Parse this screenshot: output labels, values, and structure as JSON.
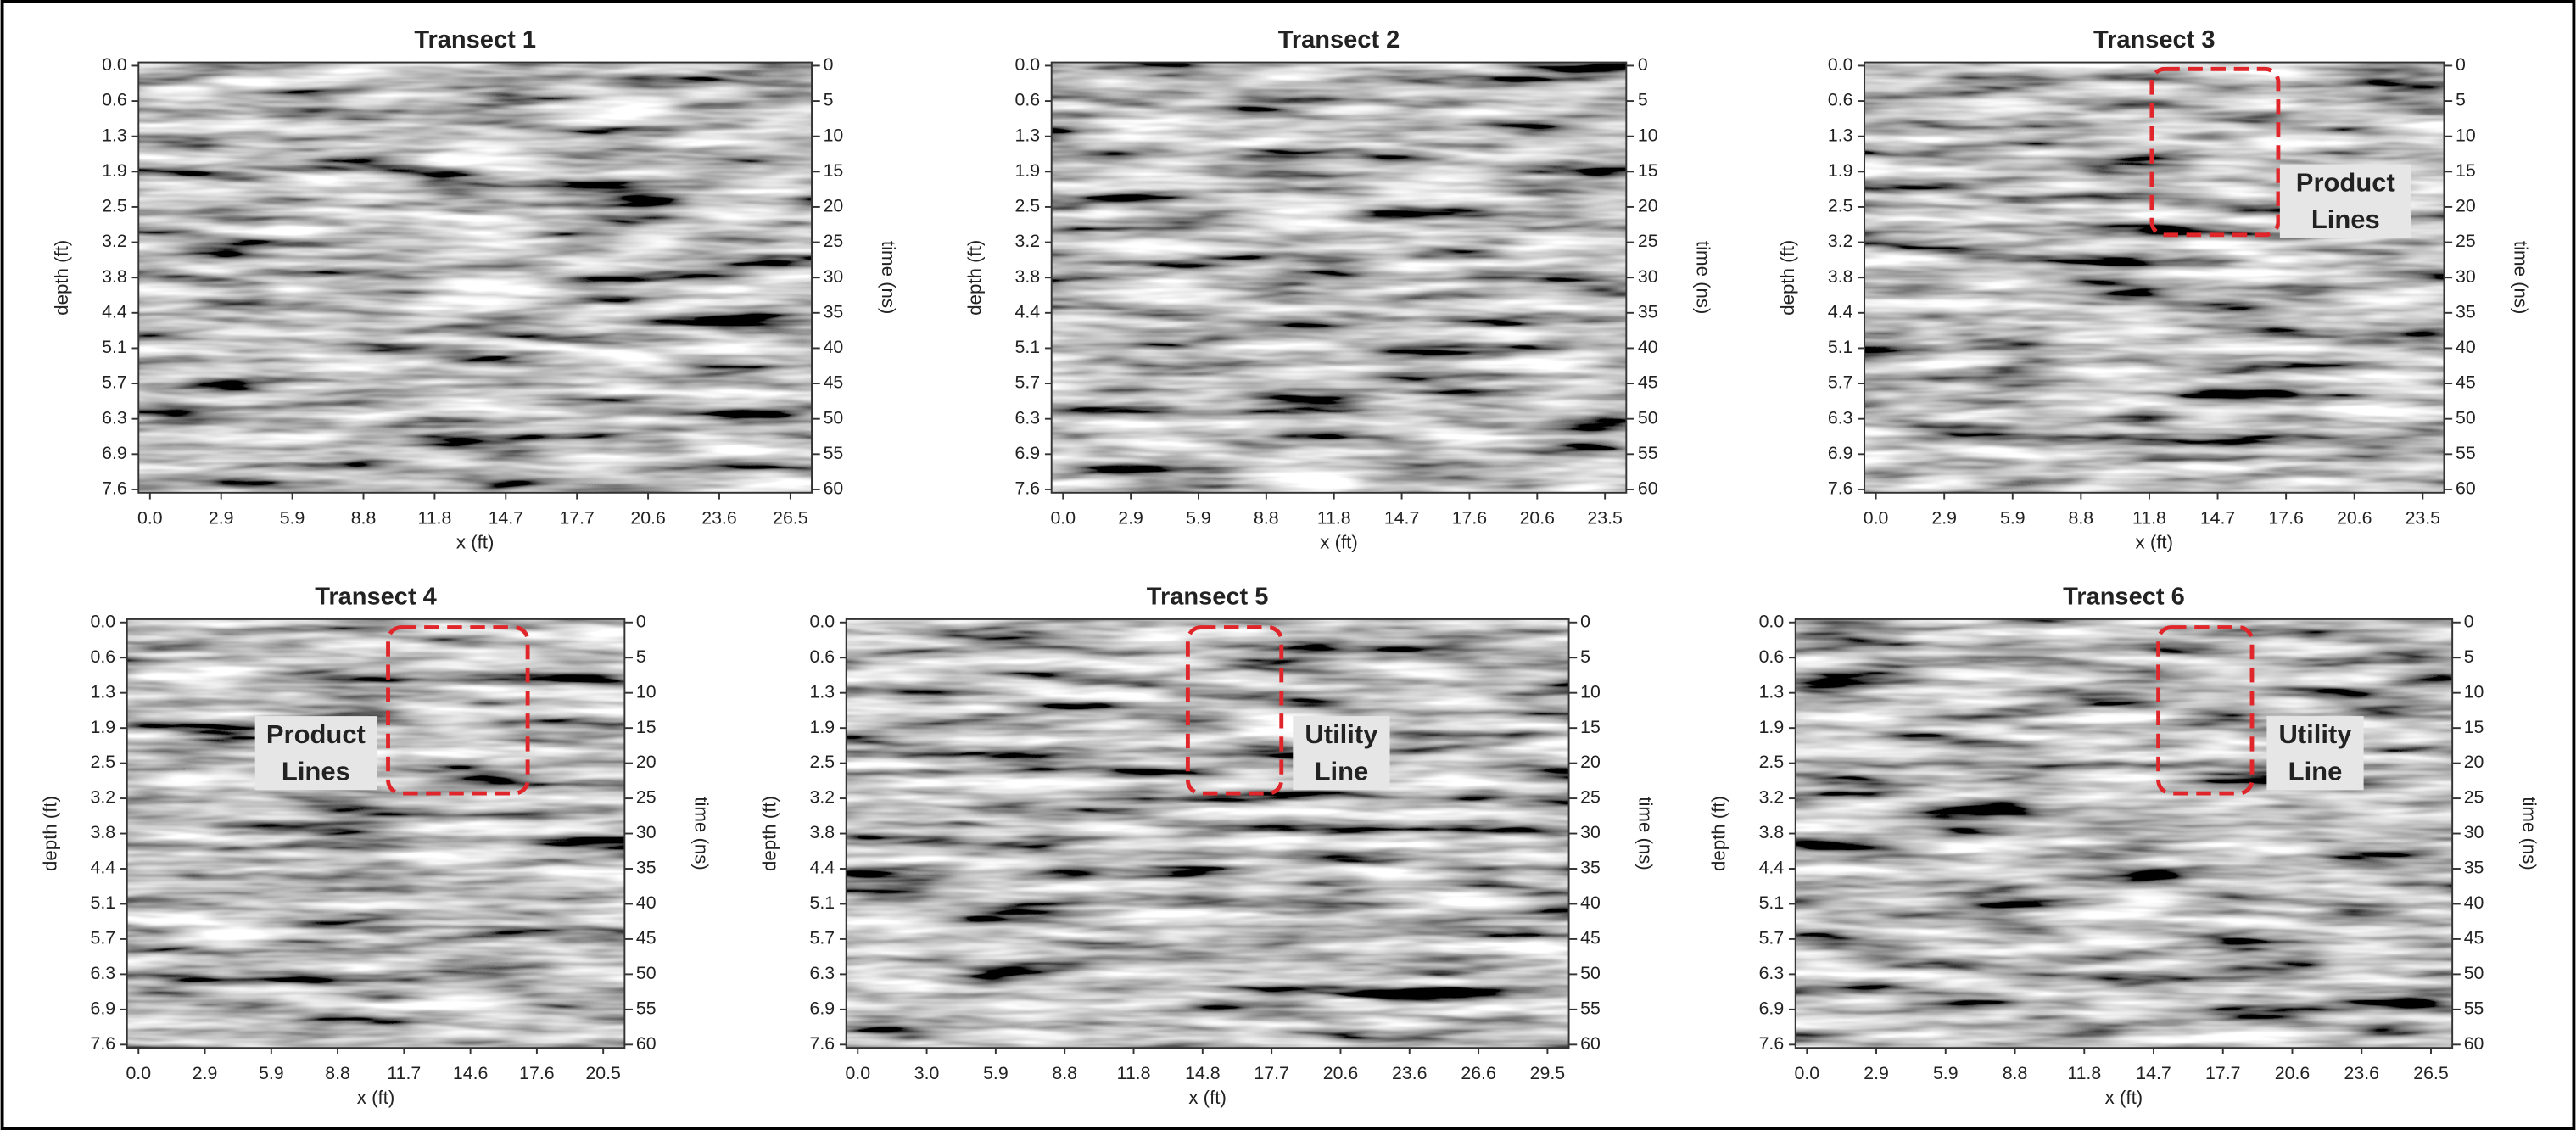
{
  "panels": [
    {
      "title": "Transect 1",
      "x_label": "x (ft)",
      "y_label": "depth (ft)",
      "y2_label": "time (ns)",
      "x_ticks": [
        "0.0",
        "2.9",
        "5.9",
        "8.8",
        "11.8",
        "14.7",
        "17.7",
        "20.6",
        "23.6",
        "26.5"
      ],
      "y_ticks": [
        "0.0",
        "0.6",
        "1.3",
        "1.9",
        "2.5",
        "3.2",
        "3.8",
        "4.4",
        "5.1",
        "5.7",
        "6.3",
        "6.9",
        "7.6"
      ],
      "y2_ticks": [
        "0",
        "5",
        "10",
        "15",
        "20",
        "25",
        "30",
        "35",
        "40",
        "45",
        "50",
        "55",
        "60"
      ]
    },
    {
      "title": "Transect 2",
      "x_label": "x (ft)",
      "y_label": "depth (ft)",
      "y2_label": "time (ns)",
      "x_ticks": [
        "0.0",
        "2.9",
        "5.9",
        "8.8",
        "11.8",
        "14.7",
        "17.6",
        "20.6",
        "23.5"
      ],
      "y_ticks": [
        "0.0",
        "0.6",
        "1.3",
        "1.9",
        "2.5",
        "3.2",
        "3.8",
        "4.4",
        "5.1",
        "5.7",
        "6.3",
        "6.9",
        "7.6"
      ],
      "y2_ticks": [
        "0",
        "5",
        "10",
        "15",
        "20",
        "25",
        "30",
        "35",
        "40",
        "45",
        "50",
        "55",
        "60"
      ]
    },
    {
      "title": "Transect 3",
      "x_label": "x (ft)",
      "y_label": "depth (ft)",
      "y2_label": "time (ns)",
      "x_ticks": [
        "0.0",
        "2.9",
        "5.9",
        "8.8",
        "11.8",
        "14.7",
        "17.6",
        "20.6",
        "23.5"
      ],
      "y_ticks": [
        "0.0",
        "0.6",
        "1.3",
        "1.9",
        "2.5",
        "3.2",
        "3.8",
        "4.4",
        "5.1",
        "5.7",
        "6.3",
        "6.9",
        "7.6"
      ],
      "y2_ticks": [
        "0",
        "5",
        "10",
        "15",
        "20",
        "25",
        "30",
        "35",
        "40",
        "45",
        "50",
        "55",
        "60"
      ],
      "annotation": {
        "lines": [
          "Product",
          "Lines"
        ]
      }
    },
    {
      "title": "Transect 4",
      "x_label": "x (ft)",
      "y_label": "depth (ft)",
      "y2_label": "time (ns)",
      "x_ticks": [
        "0.0",
        "2.9",
        "5.9",
        "8.8",
        "11.7",
        "14.6",
        "17.6",
        "20.5"
      ],
      "y_ticks": [
        "0.0",
        "0.6",
        "1.3",
        "1.9",
        "2.5",
        "3.2",
        "3.8",
        "4.4",
        "5.1",
        "5.7",
        "6.3",
        "6.9",
        "7.6"
      ],
      "y2_ticks": [
        "0",
        "5",
        "10",
        "15",
        "20",
        "25",
        "30",
        "35",
        "40",
        "45",
        "50",
        "55",
        "60"
      ],
      "annotation": {
        "lines": [
          "Product",
          "Lines"
        ]
      }
    },
    {
      "title": "Transect 5",
      "x_label": "x (ft)",
      "y_label": "depth (ft)",
      "y2_label": "time (ns)",
      "x_ticks": [
        "0.0",
        "3.0",
        "5.9",
        "8.8",
        "11.8",
        "14.8",
        "17.7",
        "20.6",
        "23.6",
        "26.6",
        "29.5"
      ],
      "y_ticks": [
        "0.0",
        "0.6",
        "1.3",
        "1.9",
        "2.5",
        "3.2",
        "3.8",
        "4.4",
        "5.1",
        "5.7",
        "6.3",
        "6.9",
        "7.6"
      ],
      "y2_ticks": [
        "0",
        "5",
        "10",
        "15",
        "20",
        "25",
        "30",
        "35",
        "40",
        "45",
        "50",
        "55",
        "60"
      ],
      "annotation": {
        "lines": [
          "Utility",
          "Line"
        ]
      }
    },
    {
      "title": "Transect 6",
      "x_label": "x (ft)",
      "y_label": "depth (ft)",
      "y2_label": "time (ns)",
      "x_ticks": [
        "0.0",
        "2.9",
        "5.9",
        "8.8",
        "11.8",
        "14.7",
        "17.7",
        "20.6",
        "23.6",
        "26.5"
      ],
      "y_ticks": [
        "0.0",
        "0.6",
        "1.3",
        "1.9",
        "2.5",
        "3.2",
        "3.8",
        "4.4",
        "5.1",
        "5.7",
        "6.3",
        "6.9",
        "7.6"
      ],
      "y2_ticks": [
        "0",
        "5",
        "10",
        "15",
        "20",
        "25",
        "30",
        "35",
        "40",
        "45",
        "50",
        "55",
        "60"
      ],
      "annotation": {
        "lines": [
          "Utility",
          "Line"
        ]
      }
    }
  ]
}
